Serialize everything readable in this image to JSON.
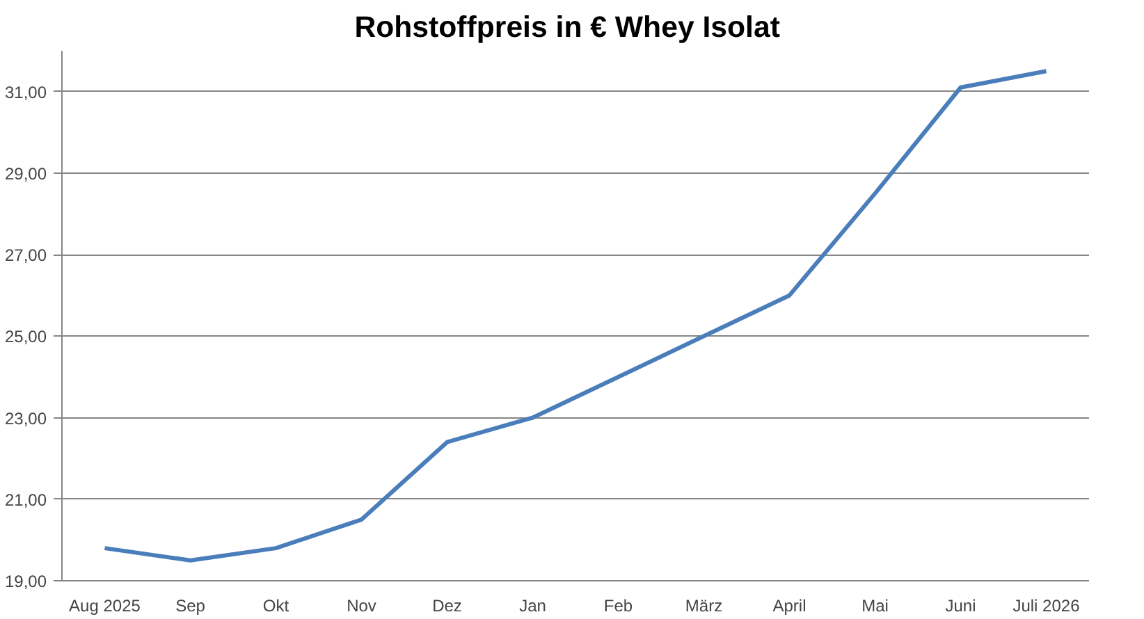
{
  "chart_data": {
    "type": "line",
    "title": "Rohstoffpreis in €   Whey Isolat",
    "categories": [
      "Aug 2025",
      "Sep",
      "Okt",
      "Nov",
      "Dez",
      "Jan",
      "Feb",
      "März",
      "April",
      "Mai",
      "Juni",
      "Juli 2026"
    ],
    "series": [
      {
        "color": "#4a7ebb",
        "values": [
          19.8,
          19.5,
          19.8,
          20.5,
          22.4,
          23.0,
          24.0,
          25.0,
          26.0,
          28.5,
          31.1,
          31.5
        ]
      }
    ],
    "ylim": [
      19,
      32
    ],
    "yticks": [
      {
        "value": 19,
        "label": "19,00"
      },
      {
        "value": 21,
        "label": "21,00"
      },
      {
        "value": 23,
        "label": "23,00"
      },
      {
        "value": 25,
        "label": "25,00"
      },
      {
        "value": 27,
        "label": "27,00"
      },
      {
        "value": 29,
        "label": "29,00"
      },
      {
        "value": 31,
        "label": "31,00"
      }
    ],
    "grid": "y",
    "marker": "none",
    "line_style": "solid"
  }
}
